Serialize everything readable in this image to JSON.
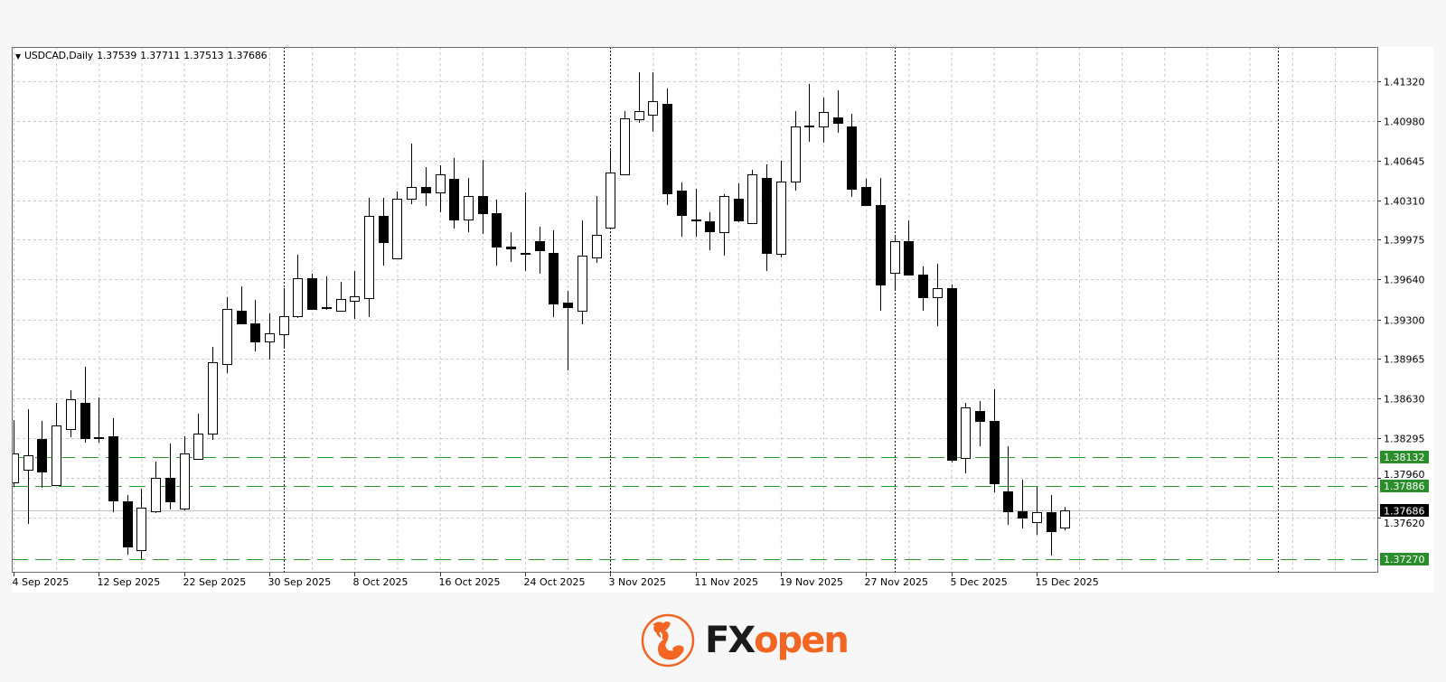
{
  "header": {
    "symbol_label": "USDCAD,Daily",
    "open": "1.37539",
    "high": "1.37711",
    "low": "1.37513",
    "close": "1.37686",
    "menu_icon": "triangle-down-icon"
  },
  "chart_data": {
    "type": "candlestick",
    "title": "USDCAD,Daily",
    "candle_fields": [
      "date",
      "open",
      "high",
      "low",
      "close"
    ],
    "candles": [
      [
        "2025-09-04",
        1.3792,
        1.38448,
        1.37882,
        1.38165
      ],
      [
        "2025-09-05",
        1.38027,
        1.3854,
        1.37568,
        1.3815
      ],
      [
        "2025-09-08",
        1.38287,
        1.3844,
        1.37874,
        1.38012
      ],
      [
        "2025-09-09",
        1.37897,
        1.38593,
        1.3789,
        1.38402
      ],
      [
        "2025-09-10",
        1.38372,
        1.387,
        1.38303,
        1.38624
      ],
      [
        "2025-09-11",
        1.38593,
        1.38899,
        1.38257,
        1.38295
      ],
      [
        "2025-09-12",
        1.38295,
        1.38639,
        1.38257,
        1.38303
      ],
      [
        "2025-09-15",
        1.3831,
        1.38463,
        1.37668,
        1.37767
      ],
      [
        "2025-09-16",
        1.37759,
        1.37813,
        1.37308,
        1.37377
      ],
      [
        "2025-09-17",
        1.37346,
        1.37867,
        1.3727,
        1.37706
      ],
      [
        "2025-09-18",
        1.37675,
        1.38096,
        1.3766,
        1.37958
      ],
      [
        "2025-09-19",
        1.37958,
        1.38249,
        1.37691,
        1.37759
      ],
      [
        "2025-09-22",
        1.37698,
        1.3831,
        1.37683,
        1.38165
      ],
      [
        "2025-09-23",
        1.38119,
        1.38502,
        1.38115,
        1.38333
      ],
      [
        "2025-09-24",
        1.38333,
        1.39068,
        1.3828,
        1.38938
      ],
      [
        "2025-09-25",
        1.38922,
        1.39488,
        1.38846,
        1.39389
      ],
      [
        "2025-09-26",
        1.39374,
        1.3958,
        1.3926,
        1.39267
      ],
      [
        "2025-09-29",
        1.39267,
        1.39465,
        1.39029,
        1.39114
      ],
      [
        "2025-09-30",
        1.39114,
        1.39351,
        1.38961,
        1.39182
      ],
      [
        "2025-10-01",
        1.39175,
        1.39565,
        1.39052,
        1.39328
      ],
      [
        "2025-10-02",
        1.39328,
        1.39848,
        1.39313,
        1.39649
      ],
      [
        "2025-10-03",
        1.39649,
        1.39687,
        1.3938,
        1.39389
      ],
      [
        "2025-10-06",
        1.39397,
        1.39664,
        1.39381,
        1.39404
      ],
      [
        "2025-10-07",
        1.39374,
        1.39618,
        1.3937,
        1.39473
      ],
      [
        "2025-10-08",
        1.39458,
        1.3971,
        1.39305,
        1.39496
      ],
      [
        "2025-10-09",
        1.39481,
        1.4033,
        1.3932,
        1.40177
      ],
      [
        "2025-10-10",
        1.40177,
        1.4033,
        1.39756,
        1.39955
      ],
      [
        "2025-10-13",
        1.39817,
        1.40383,
        1.3981,
        1.40322
      ],
      [
        "2025-10-14",
        1.40322,
        1.40789,
        1.40276,
        1.40422
      ],
      [
        "2025-10-15",
        1.40422,
        1.4059,
        1.40261,
        1.40376
      ],
      [
        "2025-10-16",
        1.40376,
        1.40605,
        1.40208,
        1.40529
      ],
      [
        "2025-10-17",
        1.40491,
        1.40667,
        1.4007,
        1.40146
      ],
      [
        "2025-10-20",
        1.40146,
        1.40498,
        1.40039,
        1.40345
      ],
      [
        "2025-10-21",
        1.40345,
        1.40651,
        1.40024,
        1.402
      ],
      [
        "2025-10-22",
        1.402,
        1.40315,
        1.39756,
        1.39917
      ],
      [
        "2025-10-23",
        1.39917,
        1.40039,
        1.39787,
        1.39902
      ],
      [
        "2025-10-24",
        1.39863,
        1.40376,
        1.3971,
        1.3986
      ],
      [
        "2025-10-27",
        1.39963,
        1.40085,
        1.39687,
        1.39886
      ],
      [
        "2025-10-28",
        1.39863,
        1.40055,
        1.3932,
        1.39435
      ],
      [
        "2025-10-29",
        1.39443,
        1.39542,
        1.38869,
        1.39404
      ],
      [
        "2025-10-30",
        1.39374,
        1.40139,
        1.39259,
        1.3984
      ],
      [
        "2025-10-31",
        1.39825,
        1.40345,
        1.39779,
        1.40016
      ],
      [
        "2025-11-03",
        1.40077,
        1.40751,
        1.4007,
        1.40544
      ],
      [
        "2025-11-04",
        1.40529,
        1.41064,
        1.40525,
        1.41003
      ],
      [
        "2025-11-05",
        1.40995,
        1.41393,
        1.40965,
        1.41064
      ],
      [
        "2025-11-06",
        1.41034,
        1.41393,
        1.40888,
        1.41148
      ],
      [
        "2025-11-07",
        1.41126,
        1.41256,
        1.40269,
        1.40368
      ],
      [
        "2025-11-10",
        1.40391,
        1.4046,
        1.40001,
        1.40185
      ],
      [
        "2025-11-11",
        1.40146,
        1.40406,
        1.40001,
        1.4014
      ],
      [
        "2025-11-12",
        1.40131,
        1.40208,
        1.39886,
        1.40047
      ],
      [
        "2025-11-13",
        1.40039,
        1.40361,
        1.3984,
        1.40345
      ],
      [
        "2025-11-14",
        1.40322,
        1.40452,
        1.40125,
        1.40139
      ],
      [
        "2025-11-17",
        1.40116,
        1.40567,
        1.4011,
        1.40529
      ],
      [
        "2025-11-18",
        1.40498,
        1.40613,
        1.3971,
        1.39863
      ],
      [
        "2025-11-19",
        1.39856,
        1.40644,
        1.39825,
        1.40468
      ],
      [
        "2025-11-20",
        1.40468,
        1.41064,
        1.40391,
        1.40934
      ],
      [
        "2025-11-21",
        1.40934,
        1.41294,
        1.40804,
        1.4094
      ],
      [
        "2025-11-24",
        1.40934,
        1.41179,
        1.40797,
        1.41057
      ],
      [
        "2025-11-25",
        1.41011,
        1.4124,
        1.40881,
        1.40965
      ],
      [
        "2025-11-26",
        1.40934,
        1.41041,
        1.40338,
        1.40406
      ],
      [
        "2025-11-27",
        1.40422,
        1.40491,
        1.40262,
        1.40269
      ],
      [
        "2025-11-28",
        1.40269,
        1.40498,
        1.39374,
        1.39596
      ],
      [
        "2025-12-01",
        1.39695,
        1.40016,
        1.39542,
        1.39963
      ],
      [
        "2025-12-02",
        1.39963,
        1.40139,
        1.39672,
        1.3968
      ],
      [
        "2025-12-03",
        1.3968,
        1.39749,
        1.39374,
        1.39488
      ],
      [
        "2025-12-04",
        1.39488,
        1.39771,
        1.39244,
        1.39565
      ],
      [
        "2025-12-05",
        1.39565,
        1.39596,
        1.38088,
        1.38111
      ],
      [
        "2025-12-08",
        1.38127,
        1.38593,
        1.37997,
        1.38555
      ],
      [
        "2025-12-09",
        1.38525,
        1.38609,
        1.38226,
        1.3844
      ],
      [
        "2025-12-10",
        1.3844,
        1.38708,
        1.37836,
        1.37912
      ],
      [
        "2025-12-11",
        1.37844,
        1.38226,
        1.37561,
        1.37675
      ],
      [
        "2025-12-12",
        1.37675,
        1.37943,
        1.3753,
        1.37622
      ],
      [
        "2025-12-15",
        1.37584,
        1.37882,
        1.37476,
        1.37668
      ],
      [
        "2025-12-16",
        1.37668,
        1.37813,
        1.373,
        1.37507
      ],
      [
        "2025-12-17",
        1.37539,
        1.37711,
        1.37513,
        1.37686
      ]
    ],
    "y_ticks": [
      "1.41320",
      "1.40980",
      "1.40645",
      "1.40310",
      "1.39975",
      "1.39640",
      "1.39300",
      "1.38965",
      "1.38630",
      "1.38295",
      "1.37960",
      "1.37620"
    ],
    "x_ticks": [
      {
        "date": "2025-09-04",
        "label": "4 Sep 2025"
      },
      {
        "date": "2025-09-12",
        "label": "12 Sep 2025"
      },
      {
        "date": "2025-09-22",
        "label": "22 Sep 2025"
      },
      {
        "date": "2025-09-30",
        "label": "30 Sep 2025"
      },
      {
        "date": "2025-10-08",
        "label": "8 Oct 2025"
      },
      {
        "date": "2025-10-16",
        "label": "16 Oct 2025"
      },
      {
        "date": "2025-10-24",
        "label": "24 Oct 2025"
      },
      {
        "date": "2025-11-03",
        "label": "3 Nov 2025"
      },
      {
        "date": "2025-11-11",
        "label": "11 Nov 2025"
      },
      {
        "date": "2025-11-19",
        "label": "19 Nov 2025"
      },
      {
        "date": "2025-11-27",
        "label": "27 Nov 2025"
      },
      {
        "date": "2025-12-05",
        "label": "5 Dec 2025"
      },
      {
        "date": "2025-12-15",
        "label": "15 Dec 2025"
      }
    ],
    "period_separators": [
      "2025-10-01",
      "2025-11-03",
      "2025-12-01"
    ],
    "levels": [
      {
        "value": "1.38132",
        "color": "#2a9a2a"
      },
      {
        "value": "1.37886",
        "color": "#2a9a2a"
      },
      {
        "value": "1.37270",
        "color": "#2a9a2a"
      }
    ],
    "current_price": {
      "value": "1.37686",
      "color": "#000000"
    },
    "ylim": [
      1.37163,
      1.41607
    ],
    "grid": true,
    "colors": {
      "bull_body": "#ffffff",
      "bear_body": "#000000",
      "outline": "#000000",
      "grid": "#c8c8c8",
      "level_label_bg": "#2a8f2a"
    }
  },
  "logo": {
    "icon": "bull-emblem-icon",
    "text_fx": "FX",
    "text_open": "open",
    "brand_color": "#f26522"
  }
}
